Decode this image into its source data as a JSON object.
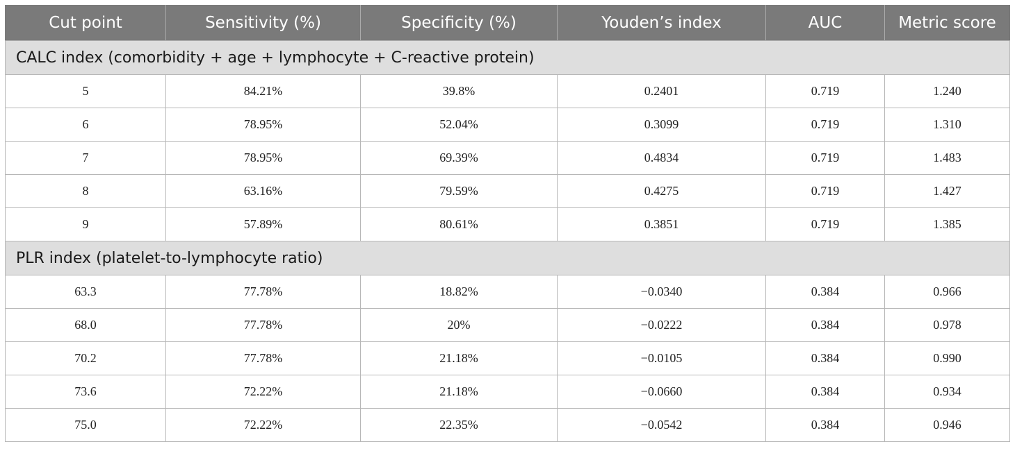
{
  "table": {
    "headers": [
      "Cut point",
      "Sensitivity (%)",
      "Specificity (%)",
      "Youden’s index",
      "AUC",
      "Metric score"
    ],
    "sections": [
      {
        "title": "CALC index (comorbidity + age + lymphocyte + C-reactive protein)",
        "rows": [
          [
            "5",
            "84.21%",
            "39.8%",
            "0.2401",
            "0.719",
            "1.240"
          ],
          [
            "6",
            "78.95%",
            "52.04%",
            "0.3099",
            "0.719",
            "1.310"
          ],
          [
            "7",
            "78.95%",
            "69.39%",
            "0.4834",
            "0.719",
            "1.483"
          ],
          [
            "8",
            "63.16%",
            "79.59%",
            "0.4275",
            "0.719",
            "1.427"
          ],
          [
            "9",
            "57.89%",
            "80.61%",
            "0.3851",
            "0.719",
            "1.385"
          ]
        ]
      },
      {
        "title": "PLR index (platelet-to-lymphocyte ratio)",
        "rows": [
          [
            "63.3",
            "77.78%",
            "18.82%",
            "−0.0340",
            "0.384",
            "0.966"
          ],
          [
            "68.0",
            "77.78%",
            "20%",
            "−0.0222",
            "0.384",
            "0.978"
          ],
          [
            "70.2",
            "77.78%",
            "21.18%",
            "−0.0105",
            "0.384",
            "0.990"
          ],
          [
            "73.6",
            "72.22%",
            "21.18%",
            "−0.0660",
            "0.384",
            "0.934"
          ],
          [
            "75.0",
            "72.22%",
            "22.35%",
            "−0.0542",
            "0.384",
            "0.946"
          ]
        ]
      }
    ]
  }
}
